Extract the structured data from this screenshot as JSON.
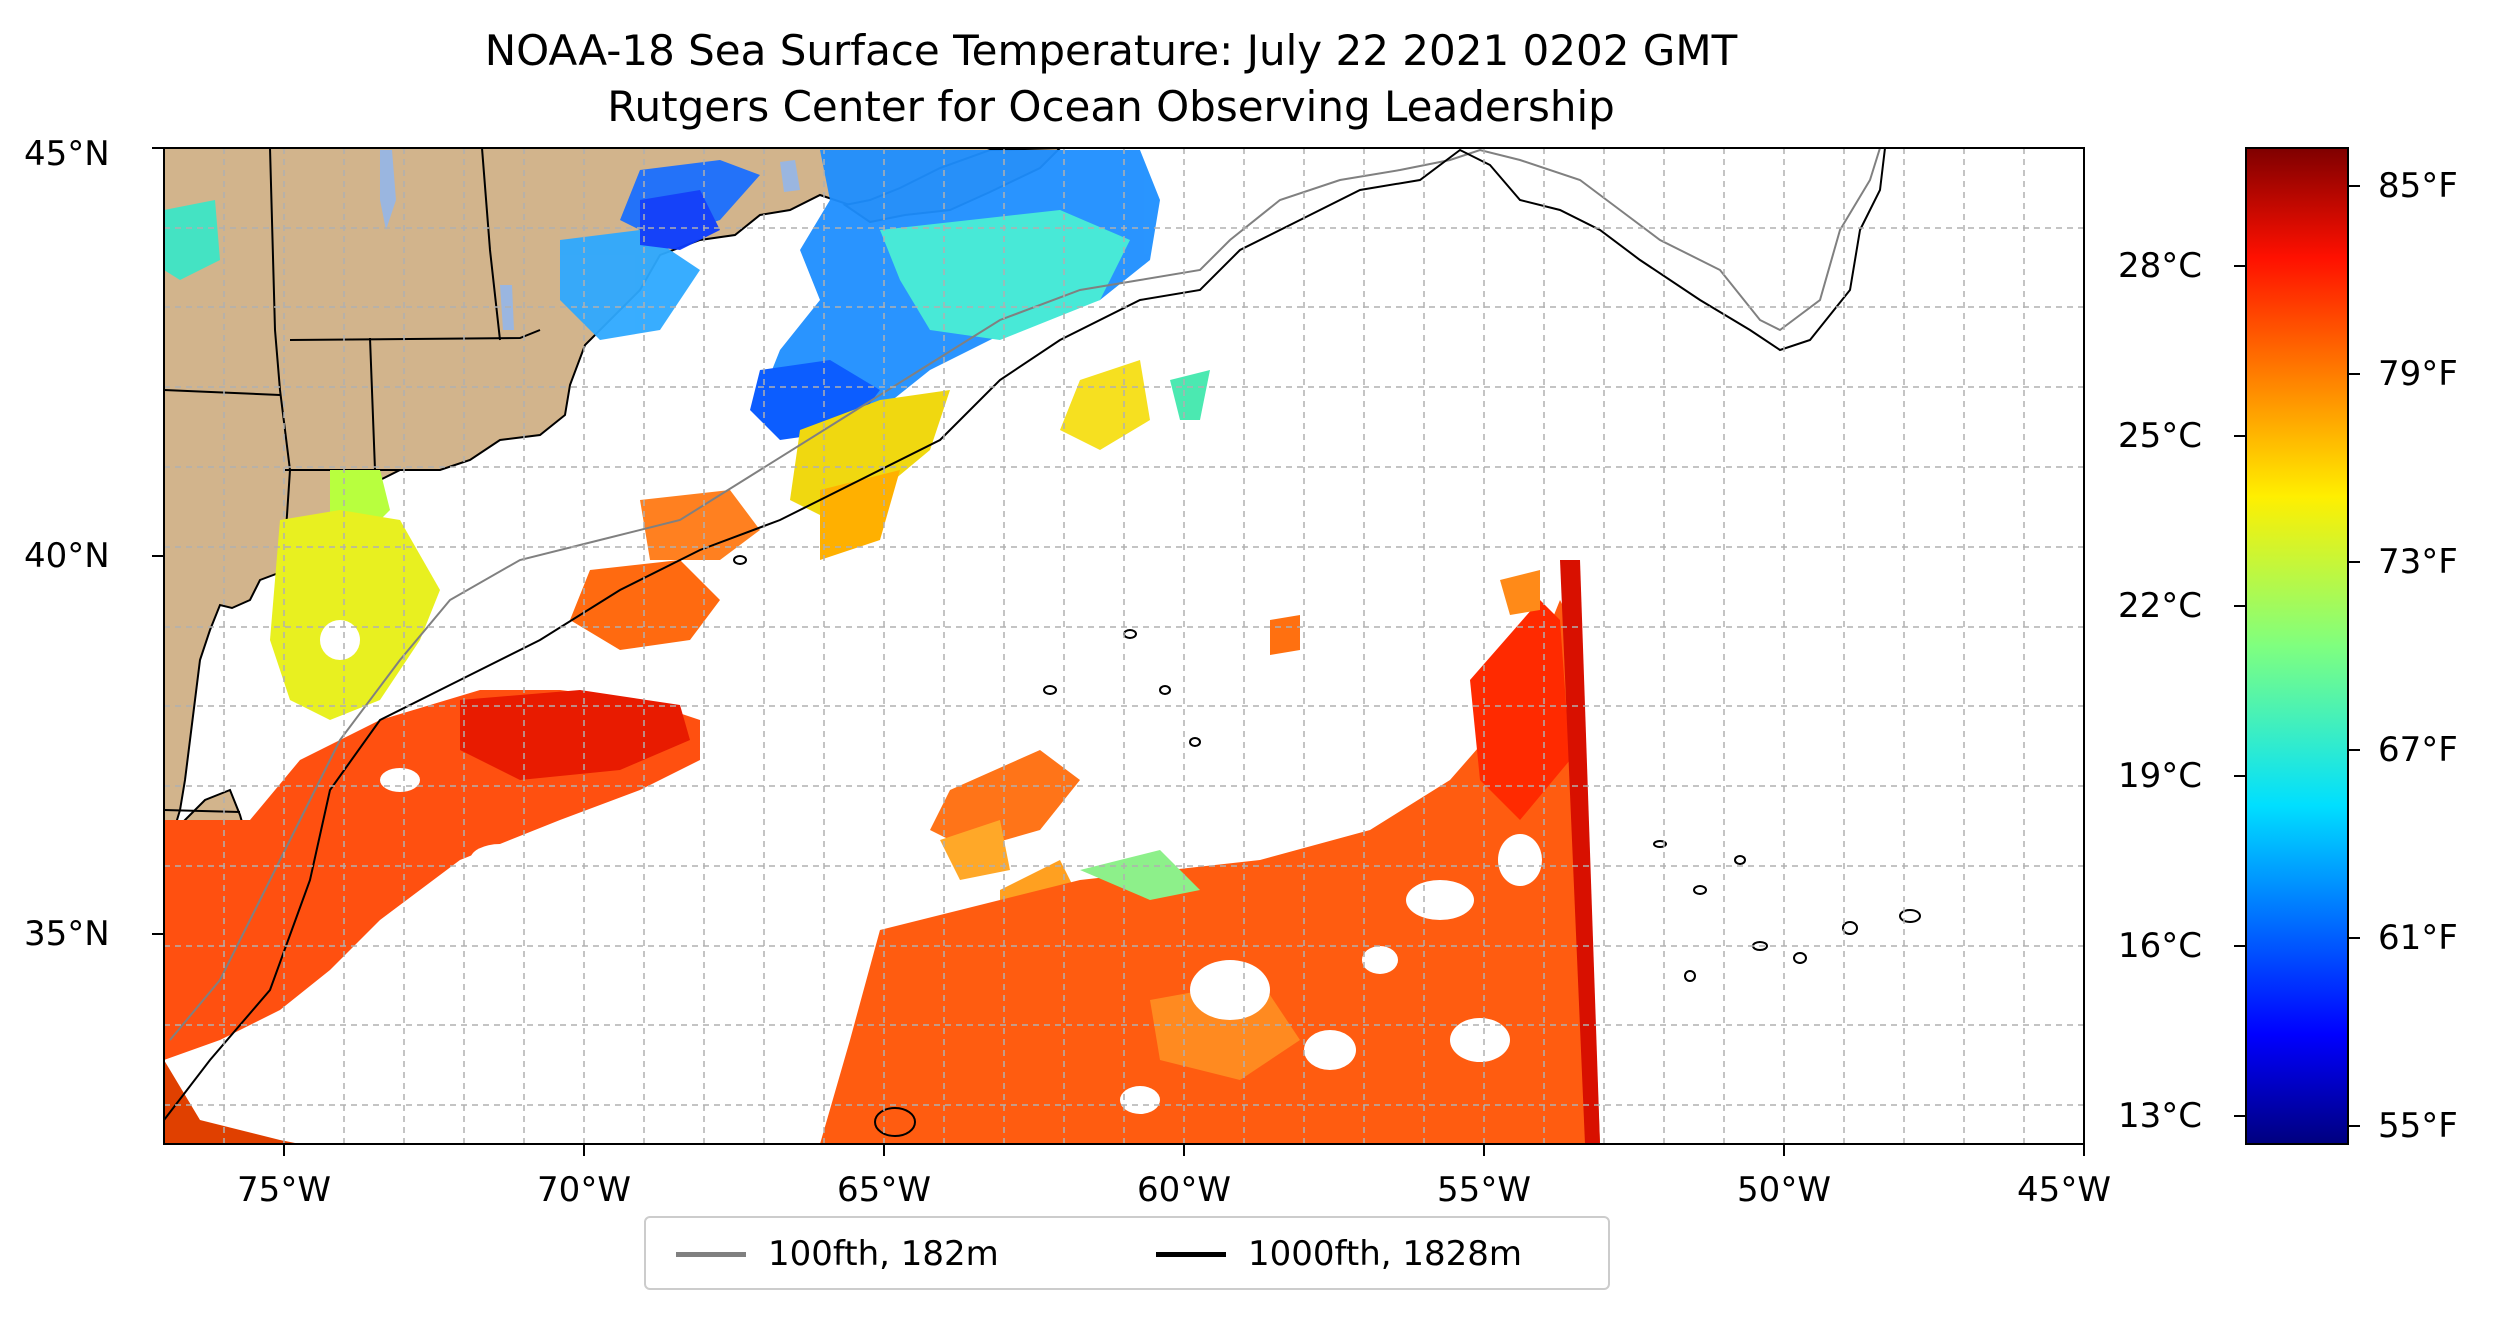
{
  "title": {
    "line1": "NOAA-18 Sea Surface Temperature: July 22 2021 0202 GMT",
    "line2": "Rutgers Center for Ocean Observing Leadership"
  },
  "map": {
    "lon_range": [
      -77,
      -45
    ],
    "lat_range": [
      32.5,
      45
    ],
    "lat_labels": [
      "45°N",
      "40°N",
      "35°N"
    ],
    "lon_labels": [
      "75°W",
      "70°W",
      "65°W",
      "60°W",
      "55°W",
      "50°W",
      "45°W"
    ],
    "land_color": "#d2b48c",
    "lake_color": "#9ab6e0",
    "gridlines": true
  },
  "colorbar": {
    "colormap": "jet",
    "celsius_ticks": [
      "28°C",
      "25°C",
      "22°C",
      "19°C",
      "16°C",
      "13°C"
    ],
    "fahrenheit_ticks": [
      "85°F",
      "79°F",
      "73°F",
      "67°F",
      "61°F",
      "55°F"
    ]
  },
  "legend": {
    "items": [
      {
        "label": "100fth, 182m",
        "color": "#808080"
      },
      {
        "label": "1000fth, 1828m",
        "color": "#000000"
      }
    ]
  }
}
